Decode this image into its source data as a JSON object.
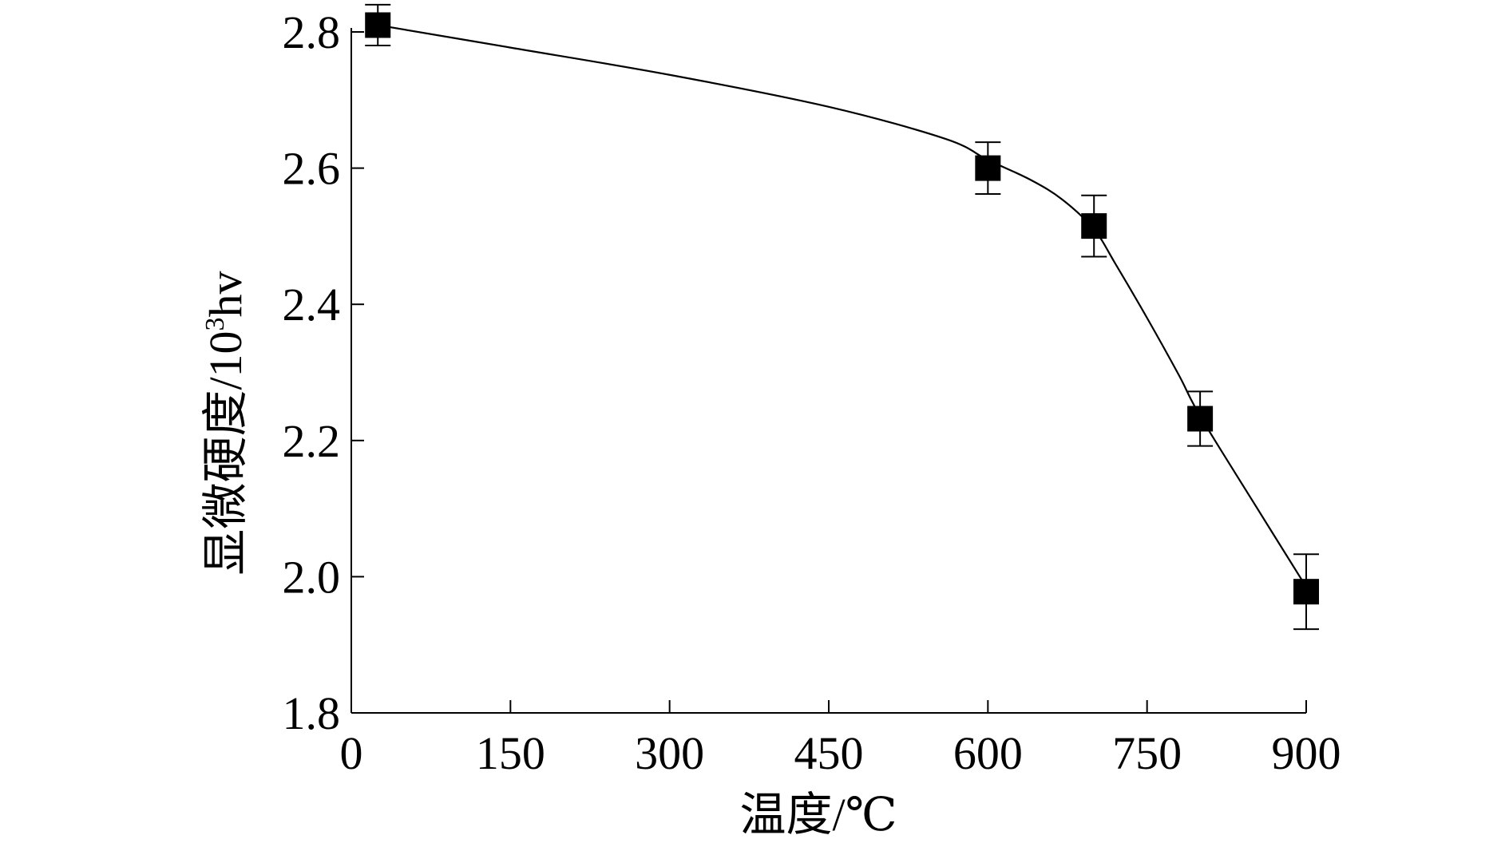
{
  "chart_data": {
    "type": "scatter",
    "xlabel": "温度/℃",
    "ylabel_main": "显微硬度/10",
    "ylabel_sup": "3",
    "ylabel_tail": "hv",
    "xlim": [
      0,
      900
    ],
    "ylim": [
      1.8,
      2.8
    ],
    "xticks": [
      0,
      150,
      300,
      450,
      600,
      750,
      900
    ],
    "yticks": [
      1.8,
      2.0,
      2.2,
      2.4,
      2.6,
      2.8
    ],
    "xtick_labels": [
      "0",
      "150",
      "300",
      "450",
      "600",
      "750",
      "900"
    ],
    "ytick_labels": [
      "1.8",
      "2.0",
      "2.2",
      "2.4",
      "2.6",
      "2.8"
    ],
    "grid": false,
    "legend": "none",
    "series": [
      {
        "marker": "filled-square",
        "color": "#000000",
        "x": [
          25,
          600,
          700,
          800,
          900
        ],
        "y": [
          2.81,
          2.6,
          2.515,
          2.232,
          1.978
        ],
        "error": [
          0.03,
          0.038,
          0.045,
          0.04,
          0.055
        ]
      }
    ],
    "fit_curve": {
      "style": "smooth-line",
      "color": "#000000",
      "x": [
        25,
        150,
        300,
        450,
        560,
        600,
        640,
        670,
        700,
        720,
        750,
        780,
        800,
        850,
        900
      ],
      "y": [
        2.81,
        2.777,
        2.737,
        2.69,
        2.643,
        2.612,
        2.583,
        2.554,
        2.51,
        2.46,
        2.38,
        2.296,
        2.236,
        2.11,
        1.985
      ]
    }
  }
}
